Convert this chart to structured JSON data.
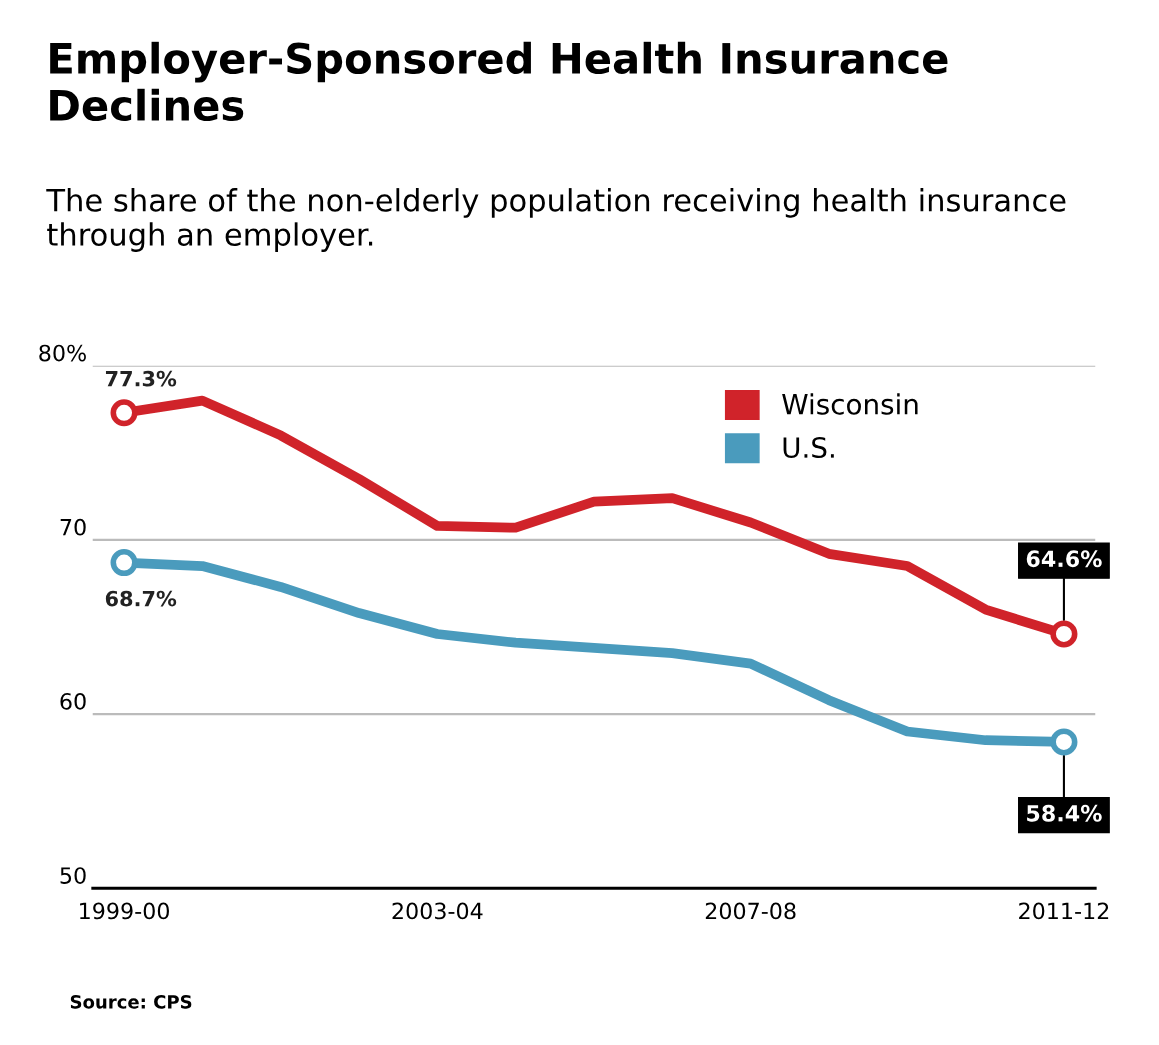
{
  "chart_data": {
    "type": "line",
    "title": "Employer-Sponsored Health Insurance Declines",
    "subtitle": "The share of the non-elderly population receiving health insurance through an employer.",
    "categories": [
      "1999-00",
      null,
      null,
      null,
      "2003-04",
      null,
      null,
      null,
      "2007-08",
      null,
      null,
      null,
      "2011-12"
    ],
    "series": [
      {
        "name": "Wisconsin",
        "color": "#d0232a",
        "values": [
          77.3,
          78.0,
          76.0,
          73.5,
          70.8,
          70.7,
          72.2,
          72.4,
          71.0,
          69.2,
          68.5,
          66.0,
          64.6
        ],
        "value_labels": [
          "77.3%",
          null,
          null,
          null,
          null,
          null,
          null,
          null,
          null,
          null,
          null,
          null,
          "64.6%"
        ]
      },
      {
        "name": "U.S.",
        "color": "#4a9bbd",
        "values": [
          68.7,
          68.5,
          67.3,
          65.8,
          64.6,
          64.1,
          63.8,
          63.5,
          62.9,
          60.8,
          59.0,
          58.5,
          58.4
        ],
        "value_labels": [
          "68.7%",
          null,
          null,
          null,
          null,
          null,
          null,
          null,
          null,
          null,
          null,
          null,
          "58.4%"
        ]
      }
    ],
    "ylim": [
      50,
      80
    ],
    "yticks": [
      {
        "value": 80,
        "label": "80%"
      },
      70,
      60,
      50
    ],
    "grid": "y",
    "legend": "top right",
    "line_style": "solid",
    "annotations": [
      "Source: CPS"
    ]
  }
}
